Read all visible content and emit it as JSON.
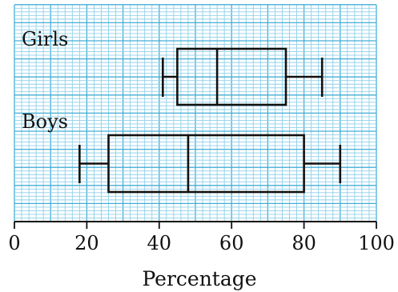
{
  "chart_data": {
    "type": "boxplot",
    "orientation": "horizontal",
    "xlabel": "Percentage",
    "xlim": [
      0,
      100
    ],
    "xticks": [
      0,
      20,
      40,
      60,
      80,
      100
    ],
    "grid": true,
    "colors": {
      "grid_minor": "#8fd0ea",
      "grid_major": "#44aed6",
      "box": "#111111"
    },
    "series": [
      {
        "name": "Girls",
        "min": 41,
        "q1": 45,
        "median": 56,
        "q3": 75,
        "max": 85
      },
      {
        "name": "Boys",
        "min": 18,
        "q1": 26,
        "median": 48,
        "q3": 80,
        "max": 90
      }
    ]
  }
}
